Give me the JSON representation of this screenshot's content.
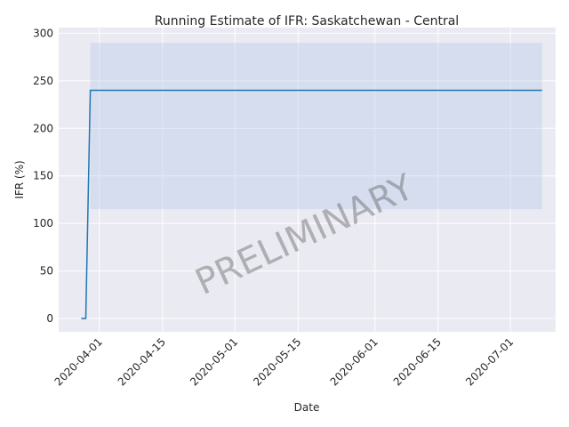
{
  "chart_data": {
    "type": "line",
    "title": "Running Estimate of IFR: Saskatchewan - Central",
    "xlabel": "Date",
    "ylabel": "IFR (%)",
    "watermark": "PRELIMINARY",
    "xlim": [
      "2020-03-23",
      "2020-07-11"
    ],
    "ylim": [
      -14,
      306
    ],
    "x_ticks": [
      "2020-04-01",
      "2020-04-15",
      "2020-05-01",
      "2020-05-15",
      "2020-06-01",
      "2020-06-15",
      "2020-07-01"
    ],
    "y_ticks": [
      0,
      50,
      100,
      150,
      200,
      250,
      300
    ],
    "grid": true,
    "colors": {
      "line": "#1f77b4",
      "band": "#aec7e8",
      "background": "#eaeaf2",
      "grid": "#ffffff"
    },
    "series": [
      {
        "x": [
          "2020-03-28",
          "2020-03-29",
          "2020-03-30",
          "2020-07-08"
        ],
        "y": [
          0,
          0,
          240,
          240
        ]
      }
    ],
    "band": {
      "x": [
        "2020-03-30",
        "2020-07-08"
      ],
      "lower": [
        115,
        115
      ],
      "upper": [
        290,
        290
      ]
    }
  }
}
